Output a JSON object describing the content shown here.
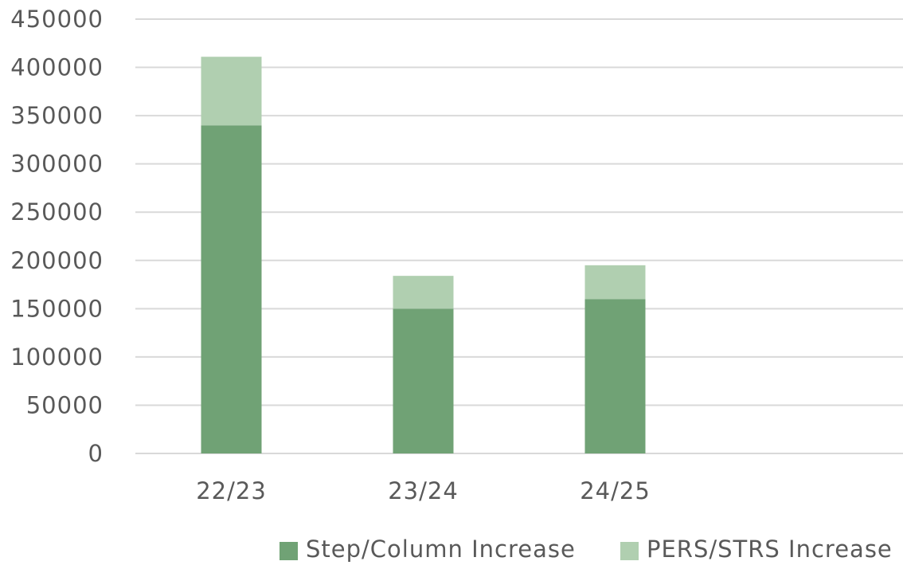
{
  "chart_data": {
    "type": "bar",
    "stacked": true,
    "categories": [
      "22/23",
      "23/24",
      "24/25",
      ""
    ],
    "series": [
      {
        "name": "Step/Column Increase",
        "values": [
          340000,
          150000,
          160000,
          null
        ],
        "color": "#70a275"
      },
      {
        "name": "PERS/STRS Increase",
        "values": [
          71000,
          34000,
          35000,
          null
        ],
        "color": "#b0cfb0"
      }
    ],
    "ylim": [
      0,
      450000
    ],
    "yticks": [
      "0",
      "50000",
      "100000",
      "150000",
      "200000",
      "250000",
      "300000",
      "350000",
      "400000",
      "450000"
    ],
    "grid": true,
    "legend_position": "bottom-right"
  }
}
